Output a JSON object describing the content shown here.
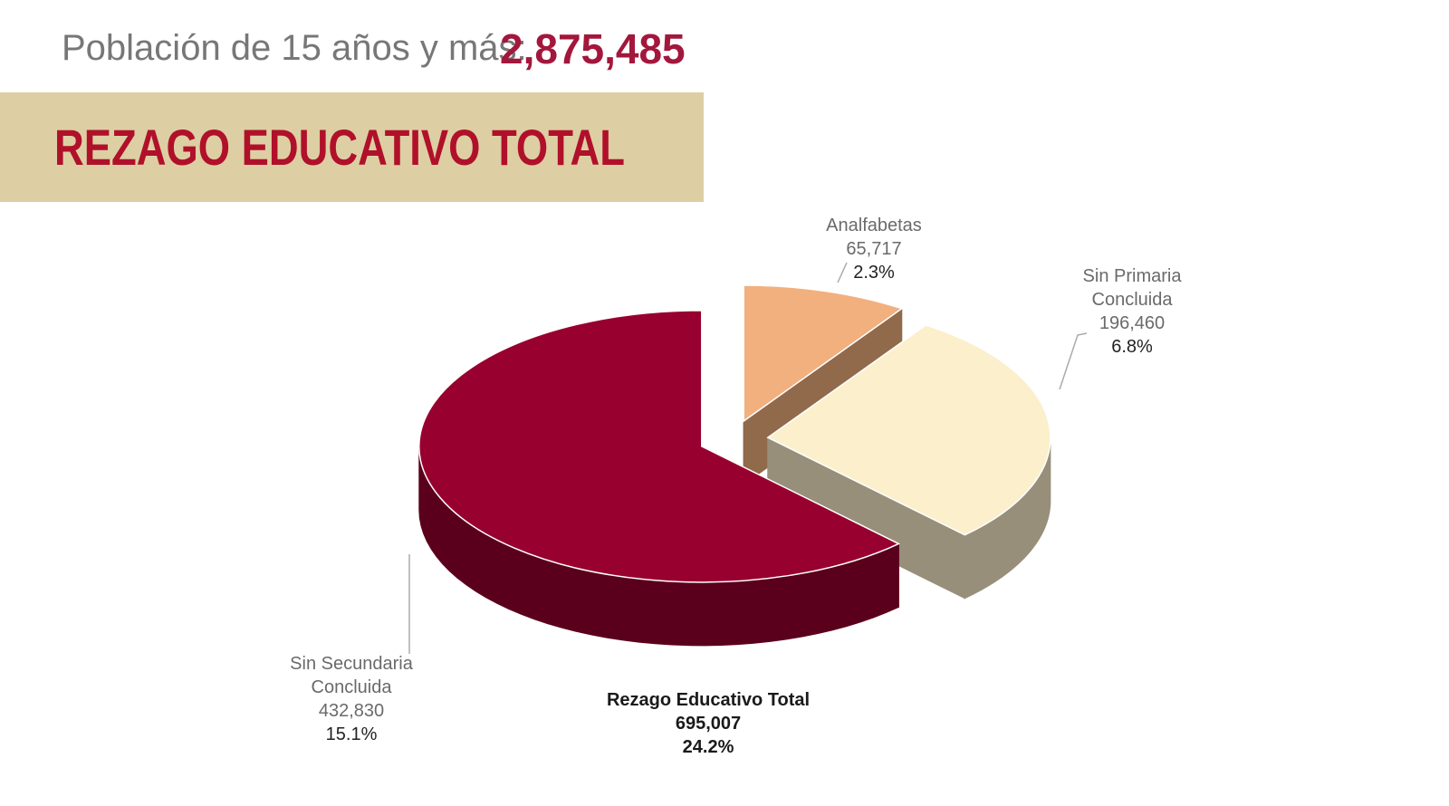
{
  "header": {
    "label": "Población de 15 años y más:",
    "value": "2,875,485"
  },
  "banner": {
    "title": "REZAGO EDUCATIVO TOTAL"
  },
  "chart_data": {
    "type": "pie",
    "categories": [
      "Analfabetas",
      "Sin Primaria Concluida",
      "Sin Secundaria Concluida"
    ],
    "values": [
      65717,
      196460,
      432830
    ],
    "value_labels": [
      "65,717",
      "196,460",
      "432,830"
    ],
    "percent_labels": [
      "2.3%",
      "6.8%",
      "15.1%"
    ],
    "colors": [
      "#f2b07f",
      "#fbefcc",
      "#97002f"
    ],
    "total": {
      "label": "Rezago Educativo Total",
      "value": "695,007",
      "percent": "24.2%"
    }
  }
}
